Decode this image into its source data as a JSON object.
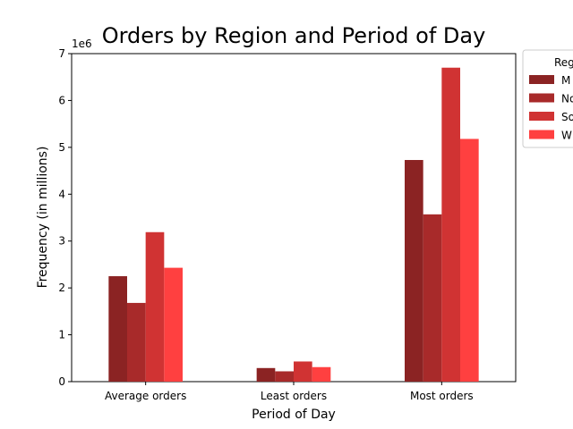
{
  "chart_data": {
    "type": "bar",
    "title": "Orders by Region and Period of Day",
    "xlabel": "Period of Day",
    "ylabel": "Frequency (in millions)",
    "offset_label": "1e6",
    "categories": [
      "Average orders",
      "Least orders",
      "Most orders"
    ],
    "ylim": [
      0,
      7000000
    ],
    "yticks": [
      0,
      1000000,
      2000000,
      3000000,
      4000000,
      5000000,
      6000000,
      7000000
    ],
    "ytick_labels": [
      "0",
      "1",
      "2",
      "3",
      "4",
      "5",
      "6",
      "7"
    ],
    "legend_title": "Reg",
    "legend_position": "outside upper right (clipped)",
    "series": [
      {
        "name": "M",
        "color": "#8b2323",
        "values": [
          2250000,
          290000,
          4730000
        ]
      },
      {
        "name": "No",
        "color": "#a82a2a",
        "values": [
          1680000,
          220000,
          3570000
        ]
      },
      {
        "name": "So",
        "color": "#d03333",
        "values": [
          3190000,
          430000,
          6700000
        ]
      },
      {
        "name": "W",
        "color": "#ff4040",
        "values": [
          2430000,
          310000,
          5180000
        ]
      }
    ]
  }
}
